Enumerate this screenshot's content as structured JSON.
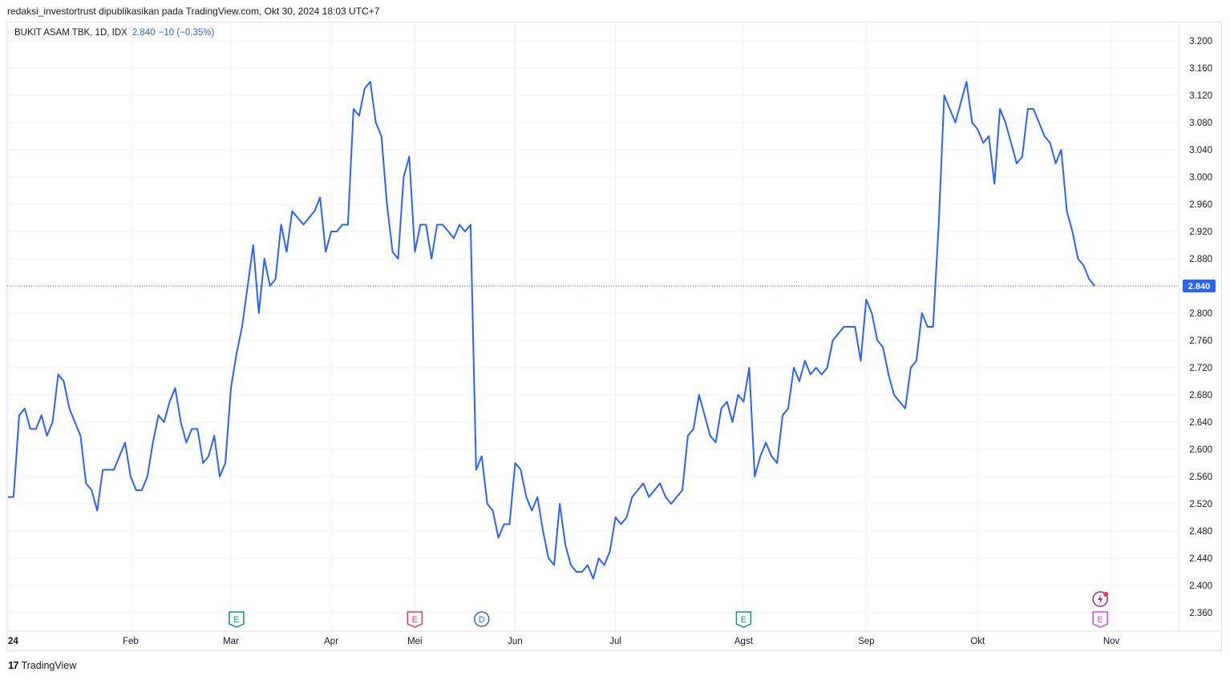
{
  "header": {
    "published_by": "redaksi_investortrust dipublikasikan pada TradingView.com, Okt 30, 2024 18:03 UTC+7"
  },
  "legend": {
    "symbol": "BUKIT ASAM TBK, 1D, IDX",
    "last_value": "2.840",
    "change": "−10 (−0,35%)"
  },
  "footer": {
    "logo_mark": "17",
    "brand": "TradingView"
  },
  "colors": {
    "line": "#2962ff",
    "grid": "#f0f3fa",
    "text": "#131722",
    "price_tag_bg": "#2962ff"
  },
  "chart_data": {
    "type": "line",
    "ylim": [
      2340,
      3220
    ],
    "y_ticks": [
      "3.200",
      "3.160",
      "3.120",
      "3.080",
      "3.040",
      "3.000",
      "2.960",
      "2.920",
      "2.880",
      "2.840",
      "2.800",
      "2.760",
      "2.720",
      "2.680",
      "2.640",
      "2.600",
      "2.560",
      "2.520",
      "2.480",
      "2.440",
      "2.400",
      "2.360"
    ],
    "x_labels": [
      {
        "label": "24",
        "index": 0
      },
      {
        "label": "Feb",
        "index": 22
      },
      {
        "label": "Mar",
        "index": 40
      },
      {
        "label": "Apr",
        "index": 58
      },
      {
        "label": "Mei",
        "index": 73
      },
      {
        "label": "Jun",
        "index": 91
      },
      {
        "label": "Jul",
        "index": 109
      },
      {
        "label": "Agst",
        "index": 132
      },
      {
        "label": "Sep",
        "index": 154
      },
      {
        "label": "Okt",
        "index": 174
      },
      {
        "label": "Nov",
        "index": 198
      }
    ],
    "last_price_label": "2.840",
    "last_price": 2840,
    "series": [
      {
        "values": [
          2530,
          2530,
          2650,
          2660,
          2630,
          2630,
          2650,
          2620,
          2640,
          2710,
          2700,
          2660,
          2640,
          2620,
          2550,
          2540,
          2510,
          2570,
          2570,
          2570,
          2590,
          2610,
          2560,
          2540,
          2540,
          2560,
          2610,
          2650,
          2640,
          2670,
          2690,
          2640,
          2610,
          2630,
          2630,
          2580,
          2590,
          2620,
          2560,
          2580,
          2690,
          2740,
          2780,
          2840,
          2900,
          2800,
          2880,
          2840,
          2850,
          2930,
          2890,
          2950,
          2940,
          2930,
          2940,
          2950,
          2970,
          2890,
          2920,
          2920,
          2930,
          2930,
          3100,
          3090,
          3130,
          3140,
          3080,
          3060,
          2960,
          2890,
          2880,
          3000,
          3030,
          2890,
          2930,
          2930,
          2880,
          2930,
          2930,
          2920,
          2910,
          2930,
          2920,
          2930,
          2570,
          2590,
          2520,
          2510,
          2470,
          2490,
          2490,
          2580,
          2570,
          2530,
          2510,
          2530,
          2480,
          2440,
          2430,
          2520,
          2460,
          2430,
          2420,
          2420,
          2430,
          2410,
          2440,
          2430,
          2450,
          2500,
          2490,
          2500,
          2530,
          2540,
          2550,
          2530,
          2540,
          2550,
          2530,
          2520,
          2530,
          2540,
          2620,
          2630,
          2680,
          2650,
          2620,
          2610,
          2660,
          2670,
          2640,
          2680,
          2670,
          2720,
          2560,
          2590,
          2610,
          2590,
          2580,
          2650,
          2660,
          2720,
          2700,
          2730,
          2710,
          2720,
          2710,
          2720,
          2760,
          2770,
          2780,
          2780,
          2780,
          2730,
          2820,
          2800,
          2760,
          2750,
          2710,
          2680,
          2670,
          2660,
          2720,
          2730,
          2800,
          2780,
          2780,
          2930,
          3120,
          3100,
          3080,
          3110,
          3140,
          3080,
          3070,
          3050,
          3060,
          2990,
          3100,
          3080,
          3050,
          3020,
          3030,
          3100,
          3100,
          3080,
          3060,
          3050,
          3020,
          3040,
          2950,
          2920,
          2880,
          2870,
          2850,
          2840
        ]
      }
    ],
    "event_markers": [
      {
        "label": "E",
        "index": 41,
        "color": "#089981"
      },
      {
        "label": "E",
        "index": 73,
        "color": "#f23645"
      },
      {
        "label": "D",
        "index": 85,
        "color": "#2962ff"
      },
      {
        "label": "E",
        "index": 132,
        "color": "#089981"
      },
      {
        "label": "E",
        "index": 196,
        "color": "#e040fb"
      }
    ],
    "flash_marker": {
      "index": 196,
      "color": "#9c27b0",
      "dot": "#f23645"
    }
  }
}
